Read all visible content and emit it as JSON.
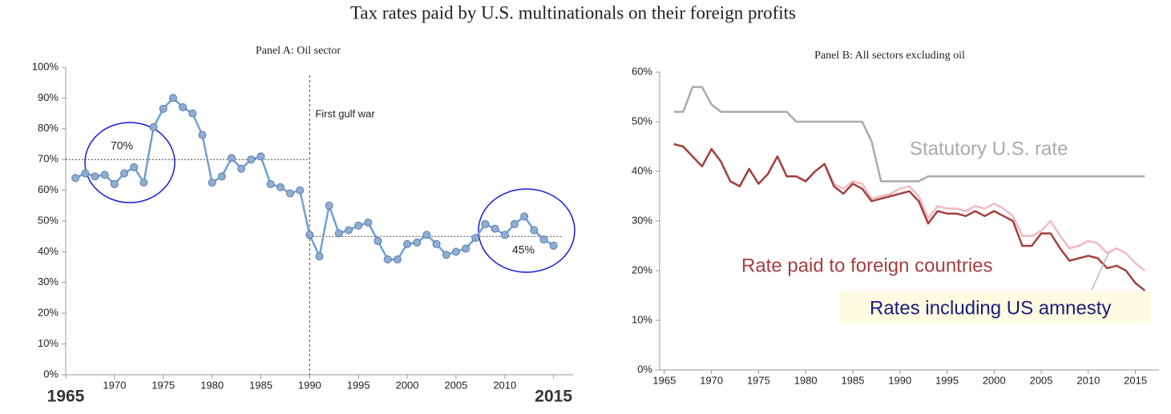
{
  "title": "Tax rates paid by U.S. multinationals on their foreign profits",
  "chart_data": [
    {
      "type": "line",
      "title": "Panel A: Oil sector",
      "x": [
        1966,
        1967,
        1968,
        1969,
        1970,
        1971,
        1972,
        1973,
        1974,
        1975,
        1976,
        1977,
        1978,
        1979,
        1980,
        1981,
        1982,
        1983,
        1984,
        1985,
        1986,
        1987,
        1988,
        1989,
        1990,
        1991,
        1992,
        1993,
        1994,
        1995,
        1996,
        1997,
        1998,
        1999,
        2000,
        2001,
        2002,
        2003,
        2004,
        2005,
        2006,
        2007,
        2008,
        2009,
        2010,
        2011,
        2012,
        2013,
        2014,
        2015
      ],
      "values": [
        64,
        65.5,
        64.5,
        65,
        62,
        65.5,
        67.5,
        62.5,
        80.5,
        86.5,
        90,
        87,
        85,
        78,
        62.5,
        64.5,
        70.5,
        67,
        70,
        71,
        62,
        61,
        59,
        60,
        45.5,
        38.5,
        55,
        46,
        47,
        48.5,
        49.5,
        43.5,
        37.5,
        37.5,
        42.5,
        43,
        45.5,
        42.5,
        39,
        40,
        41,
        44.5,
        49,
        47.5,
        45.5,
        49,
        51.5,
        47,
        44,
        42
      ],
      "color": "#6fa0d2",
      "marker_color": "#8eaed4",
      "marker": true,
      "xlim": [
        1965,
        2017
      ],
      "xticks": [
        1965,
        1970,
        1975,
        1980,
        1985,
        1990,
        1995,
        2000,
        2005,
        2010,
        2015
      ],
      "ylim": [
        0,
        100
      ],
      "yticks": [
        {
          "value": 0,
          "label": "0%"
        },
        {
          "value": 10,
          "label": "10%"
        },
        {
          "value": 20,
          "label": "20%"
        },
        {
          "value": 30,
          "label": "30%"
        },
        {
          "value": 40,
          "label": "40%"
        },
        {
          "value": 50,
          "label": "50%"
        },
        {
          "value": 60,
          "label": "60%"
        },
        {
          "value": 70,
          "label": "70%"
        },
        {
          "value": 80,
          "label": "80%"
        },
        {
          "value": 90,
          "label": "90%"
        },
        {
          "value": 100,
          "label": "100%"
        }
      ],
      "reference_lines": [
        {
          "value": 70,
          "from": 1965,
          "to": 1990,
          "label": "70%"
        },
        {
          "value": 45,
          "from": 1990,
          "to": 2016,
          "label": "45%"
        }
      ],
      "vline": {
        "x": 1990,
        "label": "First gulf war"
      },
      "grid": false
    },
    {
      "type": "line",
      "title": "Panel B: All sectors excluding oil",
      "x": [
        1966,
        1967,
        1968,
        1969,
        1970,
        1971,
        1972,
        1973,
        1974,
        1975,
        1976,
        1977,
        1978,
        1979,
        1980,
        1981,
        1982,
        1983,
        1984,
        1985,
        1986,
        1987,
        1988,
        1989,
        1990,
        1991,
        1992,
        1993,
        1994,
        1995,
        1996,
        1997,
        1998,
        1999,
        2000,
        2001,
        2002,
        2003,
        2004,
        2005,
        2006,
        2007,
        2008,
        2009,
        2010,
        2011,
        2012,
        2013,
        2014,
        2015,
        2016
      ],
      "series": [
        {
          "name": "Statutory U.S. rate",
          "color": "#aaaaaa",
          "values": [
            52,
            52,
            57,
            57,
            53.5,
            52,
            52,
            52,
            52,
            52,
            52,
            52,
            52,
            50,
            50,
            50,
            50,
            50,
            50,
            50,
            50,
            46,
            38,
            38,
            38,
            38,
            38,
            39,
            39,
            39,
            39,
            39,
            39,
            39,
            39,
            39,
            39,
            39,
            39,
            39,
            39,
            39,
            39,
            39,
            39,
            39,
            39,
            39,
            39,
            39,
            39
          ]
        },
        {
          "name": "Rate paid to foreign countries",
          "color": "#a3403f",
          "values": [
            45.5,
            45,
            43,
            41,
            44.5,
            42,
            38,
            37,
            40.5,
            37.5,
            39.5,
            43,
            39,
            39,
            38,
            40,
            41.5,
            37,
            35.5,
            37.5,
            36.5,
            34,
            34.5,
            35,
            35.5,
            36,
            34,
            29.5,
            32,
            31.5,
            31.5,
            31,
            32,
            31,
            32,
            31,
            30,
            25,
            25,
            27.5,
            27.5,
            24.5,
            22,
            22.5,
            23,
            22.5,
            20.5,
            21,
            20,
            17.5,
            16
          ]
        },
        {
          "name": "Rates including US amnesty",
          "color": "#f2b9c2",
          "values": [
            45.5,
            45,
            43,
            41,
            44.5,
            42,
            38,
            37,
            40.5,
            37.5,
            39.5,
            43,
            39,
            39,
            38,
            40,
            41.5,
            37.5,
            36.5,
            38,
            37.5,
            34.5,
            35,
            35.5,
            36.5,
            37,
            35,
            30.5,
            33,
            32.5,
            32.5,
            32,
            33,
            32.5,
            33.5,
            32.5,
            31,
            27,
            27,
            28,
            30,
            27,
            24.5,
            25,
            26,
            25.5,
            23.5,
            24.5,
            23.5,
            21.5,
            20
          ]
        }
      ],
      "xlim": [
        1964.5,
        2017.5
      ],
      "xticks": [
        1965,
        1970,
        1975,
        1980,
        1985,
        1990,
        1995,
        2000,
        2005,
        2010,
        2015
      ],
      "ylim": [
        0,
        60
      ],
      "yticks": [
        {
          "value": 0,
          "label": "0%"
        },
        {
          "value": 10,
          "label": "10%"
        },
        {
          "value": 20,
          "label": "20%"
        },
        {
          "value": 30,
          "label": "30%"
        },
        {
          "value": 40,
          "label": "40%"
        },
        {
          "value": 50,
          "label": "50%"
        },
        {
          "value": 60,
          "label": "60%"
        }
      ],
      "grid": false
    }
  ]
}
